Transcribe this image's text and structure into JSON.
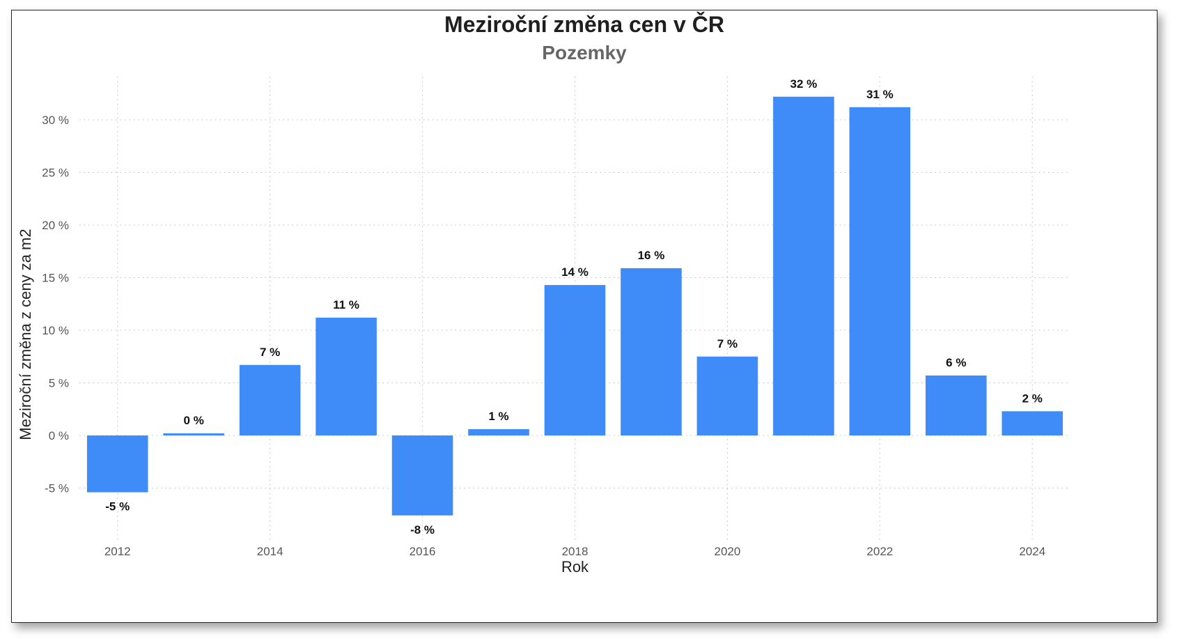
{
  "chart_data": {
    "type": "bar",
    "title": "Meziroční změna cen v ČR",
    "subtitle": "Pozemky",
    "xlabel": "Rok",
    "ylabel": "Meziroční změna z ceny za m2",
    "categories": [
      2012,
      2013,
      2014,
      2015,
      2016,
      2017,
      2018,
      2019,
      2020,
      2021,
      2022,
      2023,
      2024
    ],
    "values": [
      -5.4,
      0.2,
      6.7,
      11.2,
      -7.6,
      0.6,
      14.3,
      15.9,
      7.5,
      32.2,
      31.2,
      5.7,
      2.3
    ],
    "data_labels": [
      "-5 %",
      "0 %",
      "7 %",
      "11 %",
      "-8 %",
      "1 %",
      "14 %",
      "16 %",
      "7 %",
      "32 %",
      "31 %",
      "6 %",
      "2 %"
    ],
    "x_tick_labels": [
      "2012",
      "2014",
      "2016",
      "2018",
      "2020",
      "2022",
      "2024"
    ],
    "y_ticks": [
      -5,
      0,
      5,
      10,
      15,
      20,
      25,
      30
    ],
    "y_tick_labels": [
      "-5 %",
      "0 %",
      "5 %",
      "10 %",
      "15 %",
      "20 %",
      "25 %",
      "30 %"
    ],
    "ylim": [
      -10,
      33
    ],
    "grid": true,
    "legend": "none",
    "bar_color": "#3F8BF7"
  }
}
